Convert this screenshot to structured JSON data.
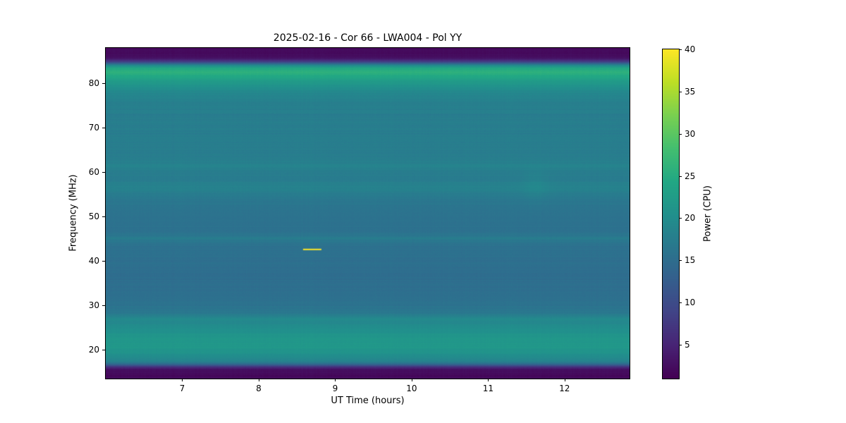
{
  "chart_data": {
    "type": "heatmap",
    "title": "2025-02-16 - Cor 66 - LWA004 - Pol YY",
    "xlabel": "UT Time (hours)",
    "ylabel": "Frequency (MHz)",
    "x_range": [
      6.0,
      12.85
    ],
    "y_range": [
      13.5,
      88.0
    ],
    "x_ticks": [
      7,
      8,
      9,
      10,
      11,
      12
    ],
    "x_tick_labels": [
      "7",
      "8",
      "9",
      "10",
      "11",
      "12"
    ],
    "y_ticks": [
      20,
      30,
      40,
      50,
      60,
      70,
      80
    ],
    "y_tick_labels": [
      "20",
      "30",
      "40",
      "50",
      "60",
      "70",
      "80"
    ],
    "grid": false,
    "colorbar": {
      "label": "Power (CPU)",
      "ticks": [
        5,
        10,
        15,
        20,
        25,
        30,
        35,
        40
      ],
      "tick_labels": [
        "5",
        "10",
        "15",
        "20",
        "25",
        "30",
        "35",
        "40"
      ],
      "vmin": 1,
      "vmax": 40,
      "colormap": "viridis",
      "colors": [
        "#440154",
        "#482475",
        "#414487",
        "#355f8d",
        "#2a788e",
        "#21918c",
        "#22a884",
        "#44bf70",
        "#7ad151",
        "#bddf26",
        "#fde725"
      ]
    },
    "spectral_profile": [
      [
        13.5,
        2.0
      ],
      [
        14.8,
        2.0
      ],
      [
        15.6,
        2.8
      ],
      [
        16.2,
        7.0
      ],
      [
        16.8,
        15.0
      ],
      [
        17.4,
        18.5
      ],
      [
        18.2,
        19.5
      ],
      [
        19.2,
        20.5
      ],
      [
        20.5,
        21.8
      ],
      [
        22.0,
        21.5
      ],
      [
        23.5,
        21.0
      ],
      [
        25.0,
        20.0
      ],
      [
        26.3,
        19.0
      ],
      [
        27.0,
        19.6
      ],
      [
        27.8,
        17.2
      ],
      [
        29.0,
        16.2
      ],
      [
        31.0,
        15.6
      ],
      [
        33.0,
        15.2
      ],
      [
        36.0,
        15.0
      ],
      [
        39.0,
        15.2
      ],
      [
        42.0,
        15.5
      ],
      [
        44.0,
        15.8
      ],
      [
        45.0,
        17.4
      ],
      [
        45.9,
        15.9
      ],
      [
        47.5,
        15.5
      ],
      [
        50.0,
        15.8
      ],
      [
        53.0,
        16.2
      ],
      [
        55.0,
        17.2
      ],
      [
        56.5,
        18.4
      ],
      [
        58.0,
        17.4
      ],
      [
        60.0,
        17.2
      ],
      [
        61.5,
        18.4
      ],
      [
        63.0,
        17.4
      ],
      [
        65.0,
        17.3
      ],
      [
        67.0,
        17.6
      ],
      [
        69.0,
        17.3
      ],
      [
        71.0,
        17.6
      ],
      [
        73.0,
        17.4
      ],
      [
        75.0,
        17.8
      ],
      [
        77.0,
        18.4
      ],
      [
        78.5,
        19.6
      ],
      [
        80.0,
        21.5
      ],
      [
        81.2,
        23.8
      ],
      [
        82.5,
        25.8
      ],
      [
        83.4,
        24.8
      ],
      [
        84.2,
        18.0
      ],
      [
        84.9,
        8.0
      ],
      [
        85.6,
        3.0
      ],
      [
        86.5,
        2.0
      ],
      [
        88.0,
        2.0
      ]
    ],
    "events": [
      {
        "name": "rfi-burst",
        "time_start": 8.58,
        "time_end": 8.82,
        "frequency": 42.6,
        "power": 40
      }
    ],
    "features": [
      {
        "name": "faint-enhancement",
        "time": 11.62,
        "frequency": 57.0,
        "amplitude": 1.1
      }
    ]
  }
}
